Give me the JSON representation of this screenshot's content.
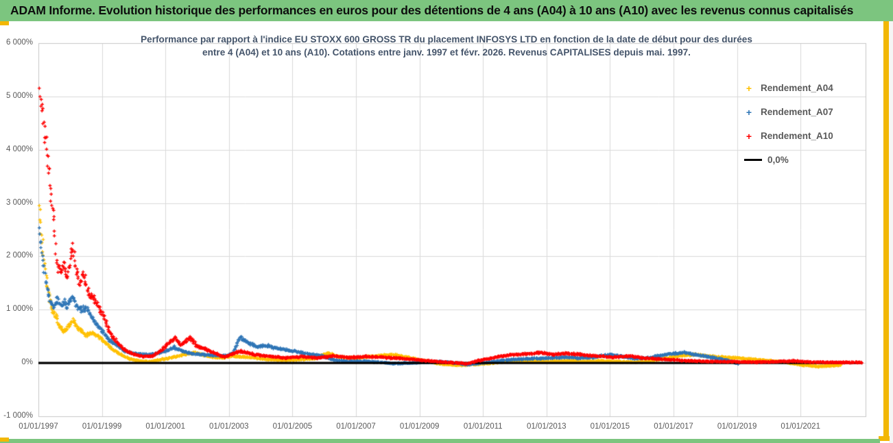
{
  "header": {
    "title": "ADAM Informe. Evolution historique des performances en euros pour des détentions de 4 ans (A04) à 10 ans (A10) avec les revenus connus capitalisés"
  },
  "chart_data": {
    "type": "scatter",
    "title_line1": "Performance par rapport à l'indice EU STOXX 600 GROSS TR  du placement INFOSYS LTD en fonction de la date de début pour des durées",
    "title_line2": "entre 4 (A04) et 10 ans (A10).  Cotations entre janv. 1997 et févr. 2026.  Revenus CAPITALISES depuis mai. 1997.",
    "x_axis": {
      "ticks": [
        {
          "label": "01/01/1997",
          "year": 1997
        },
        {
          "label": "01/01/1999",
          "year": 1999
        },
        {
          "label": "01/01/2001",
          "year": 2001
        },
        {
          "label": "01/01/2003",
          "year": 2003
        },
        {
          "label": "01/01/2005",
          "year": 2005
        },
        {
          "label": "01/01/2007",
          "year": 2007
        },
        {
          "label": "01/01/2009",
          "year": 2009
        },
        {
          "label": "01/01/2011",
          "year": 2011
        },
        {
          "label": "01/01/2013",
          "year": 2013
        },
        {
          "label": "01/01/2015",
          "year": 2015
        },
        {
          "label": "01/01/2017",
          "year": 2017
        },
        {
          "label": "01/01/2019",
          "year": 2019
        },
        {
          "label": "01/01/2021",
          "year": 2021
        }
      ],
      "grid": true
    },
    "y_axis": {
      "min": -1000,
      "max": 6000,
      "grid": true,
      "ticks": [
        {
          "label": "6 000%",
          "value": 6000
        },
        {
          "label": "5 000%",
          "value": 5000
        },
        {
          "label": "4 000%",
          "value": 4000
        },
        {
          "label": "3 000%",
          "value": 3000
        },
        {
          "label": "2 000%",
          "value": 2000
        },
        {
          "label": "1 000%",
          "value": 1000
        },
        {
          "label": "0%",
          "value": 0
        },
        {
          "label": "-1 000%",
          "value": -1000
        }
      ]
    },
    "zero_line": {
      "label": "0,0%",
      "value": 0,
      "color": "#000000",
      "end_year": 2022.95
    },
    "legend_position": "right",
    "series": [
      {
        "name": "Rendement_A04",
        "color": "#FFC000",
        "marker": "+",
        "anchors": [
          [
            1997.02,
            2960
          ],
          [
            1997.05,
            2760
          ],
          [
            1997.09,
            2500
          ],
          [
            1997.13,
            2250
          ],
          [
            1997.17,
            2000
          ],
          [
            1997.22,
            1750
          ],
          [
            1997.28,
            1460
          ],
          [
            1997.36,
            1180
          ],
          [
            1997.45,
            960
          ],
          [
            1997.55,
            880
          ],
          [
            1997.65,
            720
          ],
          [
            1997.78,
            580
          ],
          [
            1997.9,
            640
          ],
          [
            1998.08,
            800
          ],
          [
            1998.2,
            690
          ],
          [
            1998.35,
            620
          ],
          [
            1998.5,
            520
          ],
          [
            1998.65,
            555
          ],
          [
            1998.8,
            545
          ],
          [
            1999.0,
            455
          ],
          [
            1999.15,
            360
          ],
          [
            1999.3,
            270
          ],
          [
            1999.5,
            190
          ],
          [
            1999.7,
            125
          ],
          [
            1999.9,
            70
          ],
          [
            2000.2,
            35
          ],
          [
            2000.5,
            25
          ],
          [
            2000.8,
            55
          ],
          [
            2001.1,
            90
          ],
          [
            2001.4,
            130
          ],
          [
            2001.7,
            165
          ],
          [
            2001.96,
            195
          ],
          [
            2002.2,
            150
          ],
          [
            2002.5,
            110
          ],
          [
            2002.8,
            95
          ],
          [
            2003.1,
            130
          ],
          [
            2003.4,
            115
          ],
          [
            2003.8,
            95
          ],
          [
            2004.2,
            70
          ],
          [
            2004.7,
            50
          ],
          [
            2005.2,
            60
          ],
          [
            2005.7,
            85
          ],
          [
            2006.1,
            185
          ],
          [
            2006.5,
            110
          ],
          [
            2007.0,
            95
          ],
          [
            2007.6,
            130
          ],
          [
            2008.2,
            155
          ],
          [
            2008.7,
            95
          ],
          [
            2009.2,
            35
          ],
          [
            2009.7,
            -20
          ],
          [
            2010.2,
            -40
          ],
          [
            2010.7,
            -30
          ],
          [
            2011.2,
            -5
          ],
          [
            2011.7,
            25
          ],
          [
            2012.2,
            40
          ],
          [
            2012.7,
            32
          ],
          [
            2013.2,
            28
          ],
          [
            2013.7,
            40
          ],
          [
            2014.2,
            28
          ],
          [
            2014.7,
            40
          ],
          [
            2015.2,
            28
          ],
          [
            2015.7,
            12
          ],
          [
            2016.2,
            28
          ],
          [
            2016.7,
            80
          ],
          [
            2017.2,
            135
          ],
          [
            2017.7,
            160
          ],
          [
            2018.1,
            125
          ],
          [
            2018.6,
            105
          ],
          [
            2019.1,
            90
          ],
          [
            2019.6,
            65
          ],
          [
            2020.1,
            40
          ],
          [
            2020.6,
            5
          ],
          [
            2021.1,
            -40
          ],
          [
            2021.6,
            -65
          ],
          [
            2022.0,
            -50
          ],
          [
            2022.25,
            -40
          ]
        ]
      },
      {
        "name": "Rendement_A07",
        "color": "#2E75B6",
        "marker": "+",
        "anchors": [
          [
            1997.03,
            2560
          ],
          [
            1997.08,
            2250
          ],
          [
            1997.13,
            1950
          ],
          [
            1997.18,
            1720
          ],
          [
            1997.25,
            1430
          ],
          [
            1997.33,
            1220
          ],
          [
            1997.42,
            1130
          ],
          [
            1997.5,
            1060
          ],
          [
            1997.6,
            1170
          ],
          [
            1997.7,
            1080
          ],
          [
            1997.8,
            1140
          ],
          [
            1997.9,
            1040
          ],
          [
            1998.06,
            1260
          ],
          [
            1998.2,
            1090
          ],
          [
            1998.35,
            1000
          ],
          [
            1998.5,
            1030
          ],
          [
            1998.65,
            900
          ],
          [
            1998.8,
            740
          ],
          [
            1999.0,
            610
          ],
          [
            1999.15,
            480
          ],
          [
            1999.3,
            400
          ],
          [
            1999.5,
            330
          ],
          [
            1999.7,
            230
          ],
          [
            1999.9,
            185
          ],
          [
            2000.2,
            165
          ],
          [
            2000.5,
            155
          ],
          [
            2000.8,
            185
          ],
          [
            2001.1,
            240
          ],
          [
            2001.26,
            300
          ],
          [
            2001.5,
            230
          ],
          [
            2001.75,
            185
          ],
          [
            2002.0,
            165
          ],
          [
            2002.3,
            155
          ],
          [
            2002.6,
            140
          ],
          [
            2002.9,
            130
          ],
          [
            2003.15,
            200
          ],
          [
            2003.35,
            480
          ],
          [
            2003.5,
            420
          ],
          [
            2003.7,
            360
          ],
          [
            2003.9,
            300
          ],
          [
            2004.2,
            330
          ],
          [
            2004.5,
            280
          ],
          [
            2004.8,
            245
          ],
          [
            2005.1,
            220
          ],
          [
            2005.5,
            170
          ],
          [
            2005.9,
            140
          ],
          [
            2006.3,
            55
          ],
          [
            2006.7,
            30
          ],
          [
            2007.2,
            35
          ],
          [
            2007.7,
            15
          ],
          [
            2008.2,
            -10
          ],
          [
            2008.7,
            0
          ],
          [
            2009.2,
            15
          ],
          [
            2009.7,
            25
          ],
          [
            2010.2,
            -5
          ],
          [
            2010.5,
            -30
          ],
          [
            2011.0,
            0
          ],
          [
            2011.5,
            40
          ],
          [
            2012.0,
            65
          ],
          [
            2012.5,
            80
          ],
          [
            2013.0,
            90
          ],
          [
            2013.5,
            105
          ],
          [
            2014.0,
            95
          ],
          [
            2014.5,
            105
          ],
          [
            2014.95,
            155
          ],
          [
            2015.3,
            130
          ],
          [
            2015.8,
            80
          ],
          [
            2016.3,
            105
          ],
          [
            2016.8,
            165
          ],
          [
            2017.35,
            195
          ],
          [
            2017.7,
            155
          ],
          [
            2018.1,
            115
          ],
          [
            2018.5,
            75
          ],
          [
            2018.8,
            30
          ],
          [
            2019.05,
            -15
          ]
        ]
      },
      {
        "name": "Rendement_A10",
        "color": "#FF0000",
        "marker": "+",
        "anchors": [
          [
            1997.02,
            5360
          ],
          [
            1997.04,
            5150
          ],
          [
            1997.06,
            5000
          ],
          [
            1997.09,
            4870
          ],
          [
            1997.12,
            4750
          ],
          [
            1997.15,
            4550
          ],
          [
            1997.18,
            4350
          ],
          [
            1997.22,
            4150
          ],
          [
            1997.26,
            3950
          ],
          [
            1997.3,
            3800
          ],
          [
            1997.34,
            3500
          ],
          [
            1997.4,
            3150
          ],
          [
            1997.46,
            2880
          ],
          [
            1997.5,
            2500
          ],
          [
            1997.56,
            1980
          ],
          [
            1997.62,
            1750
          ],
          [
            1997.7,
            1690
          ],
          [
            1997.8,
            1860
          ],
          [
            1997.9,
            1590
          ],
          [
            1998.08,
            2190
          ],
          [
            1998.2,
            1760
          ],
          [
            1998.28,
            1540
          ],
          [
            1998.42,
            1660
          ],
          [
            1998.55,
            1340
          ],
          [
            1998.7,
            1210
          ],
          [
            1998.88,
            1080
          ],
          [
            1999.05,
            880
          ],
          [
            1999.2,
            640
          ],
          [
            1999.35,
            480
          ],
          [
            1999.5,
            370
          ],
          [
            1999.65,
            280
          ],
          [
            1999.8,
            215
          ],
          [
            2000.0,
            165
          ],
          [
            2000.3,
            120
          ],
          [
            2000.6,
            130
          ],
          [
            2000.9,
            250
          ],
          [
            2001.1,
            360
          ],
          [
            2001.3,
            480
          ],
          [
            2001.5,
            330
          ],
          [
            2001.77,
            490
          ],
          [
            2002.0,
            310
          ],
          [
            2002.3,
            250
          ],
          [
            2002.6,
            180
          ],
          [
            2002.85,
            110
          ],
          [
            2003.1,
            165
          ],
          [
            2003.35,
            220
          ],
          [
            2003.6,
            185
          ],
          [
            2003.9,
            150
          ],
          [
            2004.3,
            125
          ],
          [
            2004.8,
            95
          ],
          [
            2005.3,
            120
          ],
          [
            2005.8,
            95
          ],
          [
            2006.3,
            130
          ],
          [
            2006.8,
            100
          ],
          [
            2007.3,
            120
          ],
          [
            2007.8,
            105
          ],
          [
            2008.3,
            90
          ],
          [
            2008.8,
            65
          ],
          [
            2009.3,
            40
          ],
          [
            2009.8,
            15
          ],
          [
            2010.2,
            0
          ],
          [
            2010.5,
            -15
          ],
          [
            2010.8,
            35
          ],
          [
            2011.2,
            85
          ],
          [
            2011.8,
            150
          ],
          [
            2012.3,
            165
          ],
          [
            2012.8,
            195
          ],
          [
            2013.2,
            160
          ],
          [
            2013.6,
            180
          ],
          [
            2014.1,
            155
          ],
          [
            2014.6,
            130
          ],
          [
            2015.1,
            105
          ],
          [
            2015.6,
            130
          ],
          [
            2016.1,
            90
          ],
          [
            2016.8,
            65
          ],
          [
            2017.5,
            40
          ],
          [
            2018.1,
            28
          ],
          [
            2018.8,
            25
          ],
          [
            2019.5,
            15
          ],
          [
            2020.2,
            22
          ],
          [
            2020.8,
            38
          ],
          [
            2021.4,
            15
          ],
          [
            2022.2,
            12
          ],
          [
            2022.93,
            10
          ]
        ]
      }
    ],
    "legend_items": [
      "Rendement_A04",
      "Rendement_A07",
      "Rendement_A10",
      "0,0%"
    ],
    "render": {
      "points_per_year": 64,
      "jitter_rel": 0.07,
      "jitter_abs": 13
    }
  },
  "colors": {
    "header_green": "#7cc57f",
    "accent_gold": "#f2b705",
    "grid": "#d9d9d9",
    "axis_border": "#c6c6c6",
    "axis_text": "#595959",
    "title_text": "#44546a",
    "zero_line": "#000000"
  }
}
